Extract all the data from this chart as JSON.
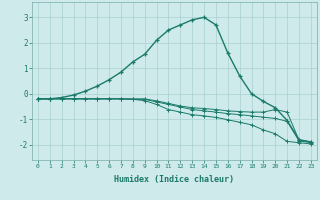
{
  "xlabel": "Humidex (Indice chaleur)",
  "background_color": "#ceeaea",
  "grid_color": "#aacfcf",
  "line_color": "#1a7a6a",
  "xlim": [
    -0.5,
    23.5
  ],
  "ylim": [
    -2.6,
    3.6
  ],
  "yticks": [
    -2,
    -1,
    0,
    1,
    2,
    3
  ],
  "xticks": [
    0,
    1,
    2,
    3,
    4,
    5,
    6,
    7,
    8,
    9,
    10,
    11,
    12,
    13,
    14,
    15,
    16,
    17,
    18,
    19,
    20,
    21,
    22,
    23
  ],
  "curve1_x": [
    0,
    1,
    2,
    3,
    4,
    5,
    6,
    7,
    8,
    9,
    10,
    11,
    12,
    13,
    14,
    15,
    16,
    17,
    18,
    19,
    20,
    21,
    22,
    23
  ],
  "curve1_y": [
    -0.2,
    -0.2,
    -0.15,
    -0.05,
    0.1,
    0.3,
    0.55,
    0.85,
    1.25,
    1.55,
    2.1,
    2.5,
    2.7,
    2.9,
    3.0,
    2.7,
    1.6,
    0.7,
    0.0,
    -0.3,
    -0.55,
    -1.05,
    -1.8,
    -1.9
  ],
  "curve2_x": [
    0,
    1,
    2,
    3,
    4,
    5,
    6,
    7,
    8,
    9,
    10,
    11,
    12,
    13,
    14,
    15,
    16,
    17,
    18,
    19,
    20,
    21,
    22,
    23
  ],
  "curve2_y": [
    -0.2,
    -0.2,
    -0.2,
    -0.2,
    -0.2,
    -0.2,
    -0.2,
    -0.2,
    -0.2,
    -0.2,
    -0.28,
    -0.38,
    -0.48,
    -0.55,
    -0.58,
    -0.62,
    -0.67,
    -0.7,
    -0.72,
    -0.72,
    -0.62,
    -0.72,
    -1.82,
    -1.88
  ],
  "curve3_x": [
    0,
    1,
    2,
    3,
    4,
    5,
    6,
    7,
    8,
    9,
    10,
    11,
    12,
    13,
    14,
    15,
    16,
    17,
    18,
    19,
    20,
    21,
    22,
    23
  ],
  "curve3_y": [
    -0.2,
    -0.2,
    -0.2,
    -0.2,
    -0.2,
    -0.2,
    -0.2,
    -0.2,
    -0.22,
    -0.22,
    -0.32,
    -0.42,
    -0.52,
    -0.62,
    -0.67,
    -0.72,
    -0.78,
    -0.82,
    -0.87,
    -0.92,
    -0.97,
    -1.08,
    -1.85,
    -1.92
  ],
  "curve4_x": [
    0,
    1,
    2,
    3,
    4,
    5,
    6,
    7,
    8,
    9,
    10,
    11,
    12,
    13,
    14,
    15,
    16,
    17,
    18,
    19,
    20,
    21,
    22,
    23
  ],
  "curve4_y": [
    -0.2,
    -0.2,
    -0.2,
    -0.2,
    -0.2,
    -0.2,
    -0.2,
    -0.2,
    -0.22,
    -0.27,
    -0.42,
    -0.62,
    -0.72,
    -0.82,
    -0.87,
    -0.93,
    -1.02,
    -1.12,
    -1.22,
    -1.42,
    -1.57,
    -1.87,
    -1.92,
    -1.97
  ]
}
